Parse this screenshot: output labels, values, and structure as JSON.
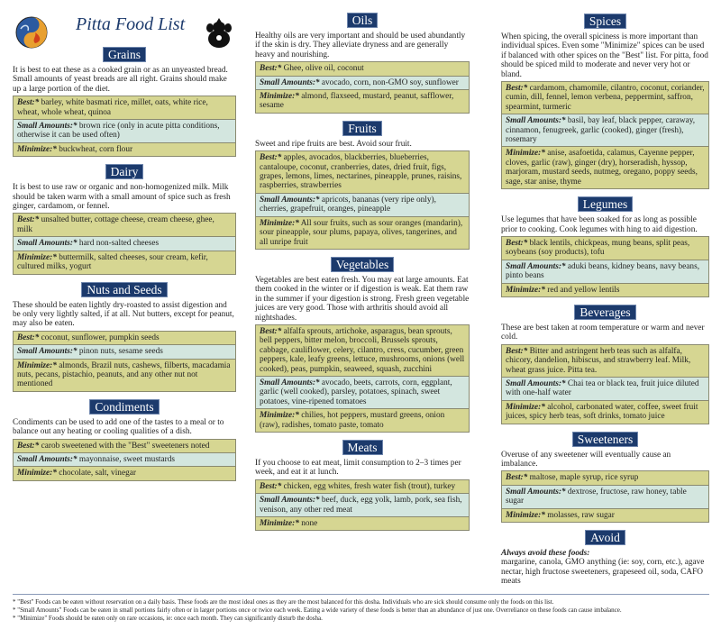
{
  "title": "Pitta Food List",
  "colors": {
    "header_bg": "#1c3a6c",
    "best_bg": "#d6d692",
    "small_bg": "#d3e6df",
    "minimize_bg": "#d6d692"
  },
  "logos": [
    "water-fire-yin-yang-logo",
    "ganesha-icon"
  ],
  "labels": {
    "best": "Best:*",
    "small": "Small Amounts:*",
    "minimize": "Minimize:*"
  },
  "columns": [
    [
      {
        "id": "grains",
        "title": "Grains",
        "desc": "It is best to eat these as a cooked grain or as an unyeasted bread. Small amounts of yeast breads are all right. Grains should make up a large portion of the diet.",
        "best": "barley, white basmati rice, millet, oats, white rice, wheat, whole wheat, quinoa",
        "small": "brown rice (only in acute pitta conditions, otherwise it can be used often)",
        "minimize": "buckwheat, corn flour"
      },
      {
        "id": "dairy",
        "title": "Dairy",
        "desc": "It is best to use raw or organic and non-homogenized milk. Milk should be taken warm with a small amount of spice such as fresh ginger, cardamom, or fennel.",
        "best": "unsalted butter, cottage cheese, cream cheese, ghee, milk",
        "small": "hard non-salted cheeses",
        "minimize": "buttermilk, salted cheeses, sour cream, kefir, cultured milks, yogurt"
      },
      {
        "id": "nuts-and-seeds",
        "title": "Nuts and Seeds",
        "desc": "These should be eaten lightly dry-roasted to assist digestion and be only very lightly salted, if at all. Nut butters, except for peanut, may also be eaten.",
        "best": "coconut, sunflower, pumpkin seeds",
        "small": "pinon nuts, sesame seeds",
        "minimize": "almonds, Brazil nuts, cashews, filberts, macadamia nuts, pecans, pistachio, peanuts, and any other nut not mentioned"
      },
      {
        "id": "condiments",
        "title": "Condiments",
        "desc": "Condiments can be used to add one of the tastes to a meal or to balance out any heating or cooling qualities of a dish.",
        "best": "carob sweetened with the \"Best\" sweeteners noted",
        "small": "mayonnaise, sweet mustards",
        "minimize": "chocolate, salt, vinegar"
      }
    ],
    [
      {
        "id": "oils",
        "title": "Oils",
        "desc": "Healthy oils are very important and should be used abundantly if the skin is dry. They alleviate dryness and are generally heavy and nourishing.",
        "best": "Ghee, olive oil, coconut",
        "small": "avocado, corn, non-GMO soy, sunflower",
        "minimize": "almond, flaxseed, mustard, peanut, safflower, sesame"
      },
      {
        "id": "fruits",
        "title": "Fruits",
        "desc": "Sweet and ripe fruits are best. Avoid sour fruit.",
        "best": "apples, avocados, blackberries, blueberries, cantaloupe, coconut, cranberries, dates, dried fruit, figs, grapes, lemons, limes, nectarines, pineapple, prunes, raisins, raspberries, strawberries",
        "small": "apricots, bananas (very ripe only), cherries, grapefruit, oranges, pineapple",
        "minimize": "All sour fruits, such as sour oranges (mandarin), sour pineapple, sour plums, papaya, olives, tangerines, and all unripe fruit"
      },
      {
        "id": "vegetables",
        "title": "Vegetables",
        "desc": "Vegetables are best eaten fresh. You may eat large amounts. Eat them cooked in the winter or if digestion is weak. Eat them raw in the summer if your digestion is strong. Fresh green vegetable juices are very good. Those with arthritis should avoid all nightshades.",
        "best": "alfalfa sprouts, artichoke, asparagus, bean sprouts, bell peppers, bitter melon, broccoli, Brussels sprouts, cabbage, cauliflower, celery, cilantro, cress, cucumber, green peppers, kale, leafy greens, lettuce, mushrooms, onions (well cooked), peas, pumpkin, seaweed, squash, zucchini",
        "small": "avocado, beets, carrots, corn, eggplant, garlic (well cooked), parsley, potatoes, spinach, sweet potatoes, vine-ripened tomatoes",
        "minimize": "chilies, hot peppers, mustard greens, onion (raw), radishes, tomato paste, tomato"
      },
      {
        "id": "meats",
        "title": "Meats",
        "desc": "If you choose to eat meat, limit consumption to 2–3 times per week, and eat it at lunch.",
        "best": "chicken, egg whites, fresh water fish (trout), turkey",
        "small": "beef, duck, egg yolk, lamb, pork, sea fish, venison, any other red meat",
        "minimize": "none"
      }
    ],
    [
      {
        "id": "spices",
        "title": "Spices",
        "desc": "When spicing, the overall spiciness is more important than individual spices. Even some \"Minimize\" spices can be used if balanced with other spices on the \"Best\" list. For pitta, food should be spiced mild to moderate and never very hot or bland.",
        "best": "cardamom, chamomile, cilantro, coconut, coriander, cumin, dill, fennel, lemon verbena, peppermint, saffron, spearmint, turmeric",
        "small": "basil, bay leaf, black pepper, caraway, cinnamon, fenugreek, garlic (cooked), ginger (fresh), rosemary",
        "minimize": "anise, asafoetida, calamus, Cayenne pepper, cloves, garlic (raw), ginger (dry), horseradish, hyssop, marjoram, mustard seeds, nutmeg, oregano, poppy seeds, sage, star anise, thyme"
      },
      {
        "id": "legumes",
        "title": "Legumes",
        "desc": "Use legumes that have been soaked for as long as possible prior to cooking. Cook legumes with hing to aid digestion.",
        "best": "black lentils, chickpeas, mung beans, split peas, soybeans (soy products), tofu",
        "small": "aduki beans, kidney beans, navy beans, pinto beans",
        "minimize": "red and yellow lentils"
      },
      {
        "id": "beverages",
        "title": "Beverages",
        "desc": "These are best taken at room temperature or warm and never cold.",
        "best": "Bitter and astringent herb teas such as alfalfa, chicory, dandelion, hibiscus, and strawberry leaf. Milk, wheat grass juice. Pitta tea.",
        "small": "Chai tea or black tea, fruit juice diluted with one-half water",
        "minimize": "alcohol, carbonated water, coffee, sweet fruit juices, spicy herb teas, soft drinks, tomato juice"
      },
      {
        "id": "sweeteners",
        "title": "Sweeteners",
        "desc": "Overuse of any sweetener will eventually cause an imbalance.",
        "best": "maltose, maple syrup, rice syrup",
        "small": "dextrose, fructose, raw honey, table sugar",
        "minimize": "molasses, raw sugar"
      }
    ]
  ],
  "avoid": {
    "title": "Avoid",
    "label": "Always avoid these foods:",
    "text": "margarine, canola, GMO anything (ie: soy, corn, etc.), agave nectar, high fructose sweeteners, grapeseed oil, soda, CAFO meats"
  },
  "footnotes": [
    "* \"Best\" Foods can be eaten without reservation on a daily basis. These foods are the most ideal ones as they are the most balanced for this dosha. Individuals who are sick should consume only the foods on this list.",
    "* \"Small Amounts\" Foods can be eaten in small portions fairly often or in larger portions once or twice each week. Eating a wide variety of these foods is better than an abundance of just one. Overreliance on these foods can cause imbalance.",
    "* \"Minimize\" Foods should be eaten only on rare occasions, ie: once each month. They can significantly disturb the dosha."
  ]
}
